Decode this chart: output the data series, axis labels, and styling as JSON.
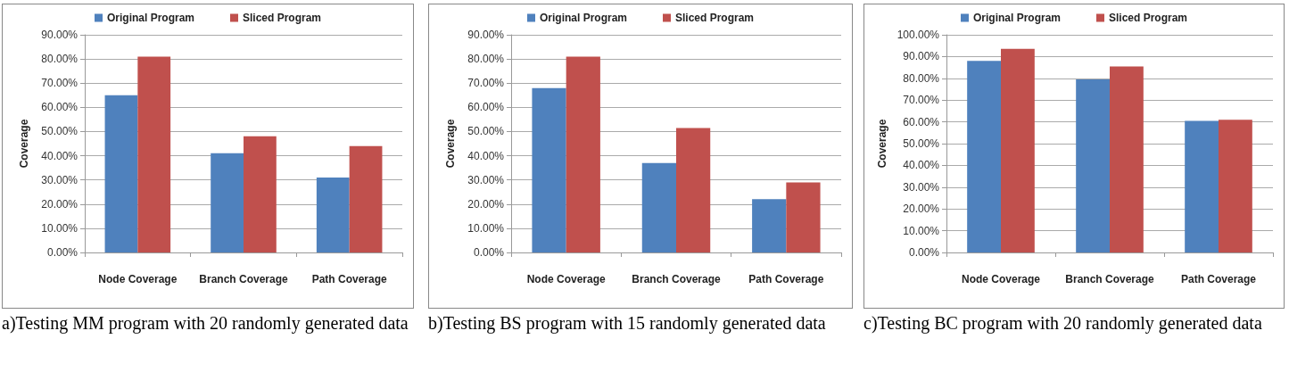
{
  "chart_data": [
    {
      "type": "bar",
      "ylabel": "Coverage",
      "categories": [
        "Node Coverage",
        "Branch Coverage",
        "Path Coverage"
      ],
      "series": [
        {
          "name": "Original Program",
          "color": "#4f81bd",
          "values": [
            65,
            41,
            31
          ]
        },
        {
          "name": "Sliced Program",
          "color": "#c0504d",
          "values": [
            81,
            48,
            44
          ]
        }
      ],
      "ylim": [
        0,
        90
      ],
      "yticks": [
        {
          "value": 0,
          "label": "0.00%"
        },
        {
          "value": 10,
          "label": "10.00%"
        },
        {
          "value": 20,
          "label": "20.00%"
        },
        {
          "value": 30,
          "label": "30.00%"
        },
        {
          "value": 40,
          "label": "40.00%"
        },
        {
          "value": 50,
          "label": "50.00%"
        },
        {
          "value": 60,
          "label": "60.00%"
        },
        {
          "value": 70,
          "label": "70.00%"
        },
        {
          "value": 80,
          "label": "80.00%"
        },
        {
          "value": 90,
          "label": "90.00%"
        }
      ],
      "grid": "y",
      "legend": "top",
      "annotations": [
        "a)Testing MM program with 20 randomly generated data"
      ]
    },
    {
      "type": "bar",
      "ylabel": "Coverage",
      "categories": [
        "Node Coverage",
        "Branch Coverage",
        "Path Coverage"
      ],
      "series": [
        {
          "name": "Original Program",
          "color": "#4f81bd",
          "values": [
            68,
            37,
            22
          ]
        },
        {
          "name": "Sliced Program",
          "color": "#c0504d",
          "values": [
            81,
            51.5,
            29
          ]
        }
      ],
      "ylim": [
        0,
        90
      ],
      "yticks": [
        {
          "value": 0,
          "label": "0.00%"
        },
        {
          "value": 10,
          "label": "10.00%"
        },
        {
          "value": 20,
          "label": "20.00%"
        },
        {
          "value": 30,
          "label": "30.00%"
        },
        {
          "value": 40,
          "label": "40.00%"
        },
        {
          "value": 50,
          "label": "50.00%"
        },
        {
          "value": 60,
          "label": "60.00%"
        },
        {
          "value": 70,
          "label": "70.00%"
        },
        {
          "value": 80,
          "label": "80.00%"
        },
        {
          "value": 90,
          "label": "90.00%"
        }
      ],
      "grid": "y",
      "legend": "top",
      "annotations": [
        "b)Testing BS program with 15 randomly generated data"
      ]
    },
    {
      "type": "bar",
      "ylabel": "Coverage",
      "categories": [
        "Node Coverage",
        "Branch Coverage",
        "Path Coverage"
      ],
      "series": [
        {
          "name": "Original Program",
          "color": "#4f81bd",
          "values": [
            88,
            79.5,
            60.5
          ]
        },
        {
          "name": "Sliced Program",
          "color": "#c0504d",
          "values": [
            93.5,
            85.5,
            61
          ]
        }
      ],
      "ylim": [
        0,
        100
      ],
      "yticks": [
        {
          "value": 0,
          "label": "0.00%"
        },
        {
          "value": 10,
          "label": "10.00%"
        },
        {
          "value": 20,
          "label": "20.00%"
        },
        {
          "value": 30,
          "label": "30.00%"
        },
        {
          "value": 40,
          "label": "40.00%"
        },
        {
          "value": 50,
          "label": "50.00%"
        },
        {
          "value": 60,
          "label": "60.00%"
        },
        {
          "value": 70,
          "label": "70.00%"
        },
        {
          "value": 80,
          "label": "80.00%"
        },
        {
          "value": 90,
          "label": "90.00%"
        },
        {
          "value": 100,
          "label": "100.00%"
        }
      ],
      "grid": "y",
      "legend": "top",
      "annotations": [
        "c)Testing BC program with 20 randomly generated data"
      ]
    }
  ]
}
